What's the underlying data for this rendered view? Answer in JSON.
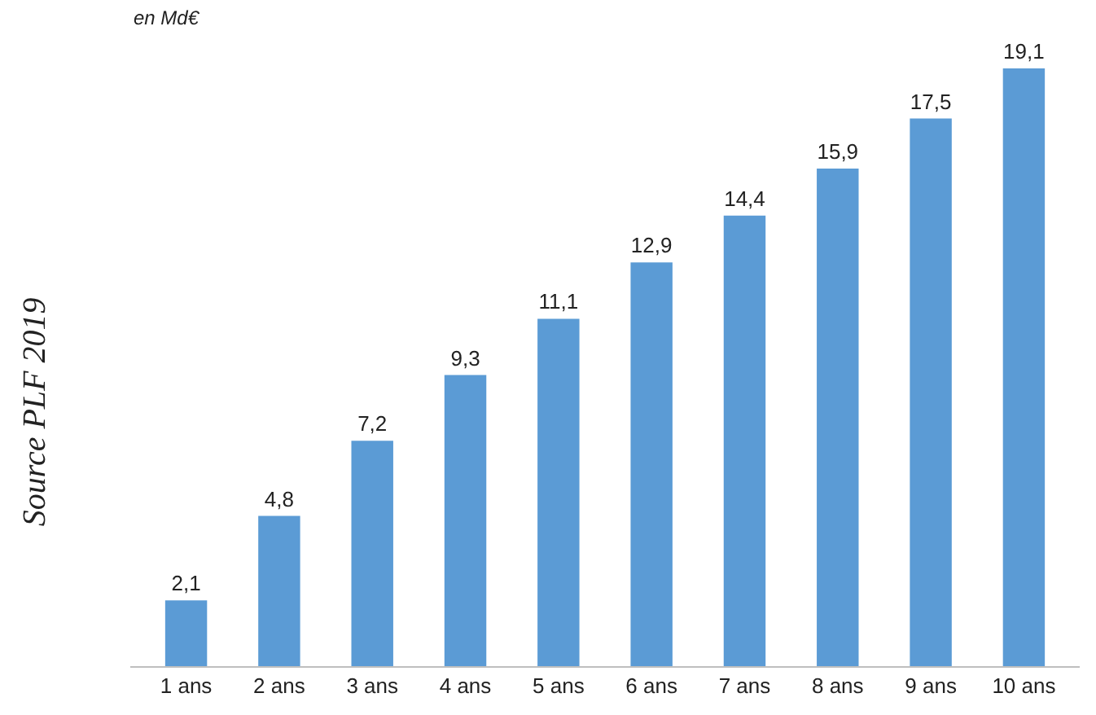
{
  "chart_data": {
    "type": "bar",
    "categories": [
      "1 ans",
      "2 ans",
      "3 ans",
      "4 ans",
      "5 ans",
      "6 ans",
      "7 ans",
      "8 ans",
      "9 ans",
      "10 ans"
    ],
    "values": [
      2.1,
      4.8,
      7.2,
      9.3,
      11.1,
      12.9,
      14.4,
      15.9,
      17.5,
      19.1
    ],
    "value_labels": [
      "2,1",
      "4,8",
      "7,2",
      "9,3",
      "11,1",
      "12,9",
      "14,4",
      "15,9",
      "17,5",
      "19,1"
    ],
    "color": "#5b9bd5",
    "annotations": [
      "en Md€",
      "Source PLF 2019"
    ]
  }
}
